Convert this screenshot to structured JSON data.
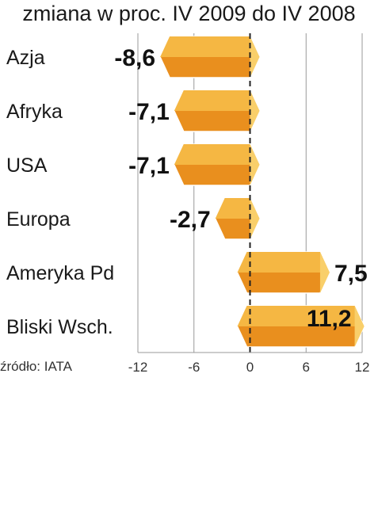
{
  "chart_data": {
    "type": "bar",
    "orientation": "horizontal",
    "title": "zmiana w proc. IV 2009 do IV 2008",
    "categories": [
      "Azja",
      "Afryka",
      "USA",
      "Europa",
      "Ameryka Pd",
      "Bliski Wsch."
    ],
    "values": [
      -8.6,
      -7.1,
      -7.1,
      -2.7,
      7.5,
      11.2
    ],
    "value_labels": [
      "-8,6",
      "-7,1",
      "-7,1",
      "-2,7",
      "7,5",
      "11,2"
    ],
    "xlim": [
      -12,
      12
    ],
    "xticks": [
      -12,
      -6,
      0,
      6,
      12
    ],
    "xtick_labels": [
      "-12",
      "-6",
      "0",
      "6",
      "12"
    ],
    "grid": true,
    "source": "źródło: IATA"
  },
  "colors": {
    "bar_top": "#f5b743",
    "bar_bottom": "#e98f1e",
    "bar_end": "#f9cf6a",
    "grid": "#999999",
    "zero_line": "#222222"
  }
}
